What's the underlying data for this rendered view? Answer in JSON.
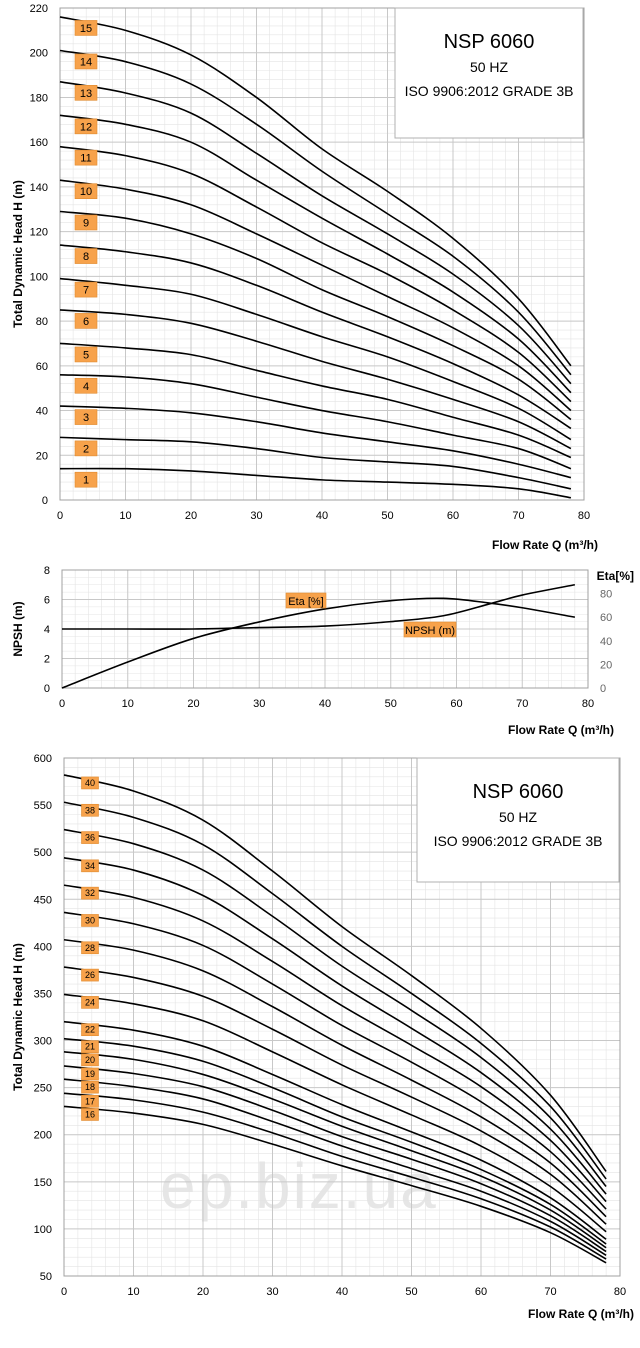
{
  "watermark": "ep.biz.ua",
  "colors": {
    "curve": "#000000",
    "grid_major": "#c8c8c8",
    "grid_minor": "#e4e4e4",
    "badge": "#f7a24b",
    "badge_border": "#e08a2e"
  },
  "chart_data": [
    {
      "type": "line",
      "info_box": {
        "title": "NSP 6060",
        "freq": "50 HZ",
        "standard": "ISO 9906:2012 GRADE 3B"
      },
      "xlabel": "Flow Rate Q (m³/h)",
      "ylabel": "Total Dynamic Head  H (m)",
      "xlim": [
        0,
        80
      ],
      "ylim": [
        0,
        220
      ],
      "x_ticks": [
        "0",
        "10",
        "20",
        "30",
        "40",
        "50",
        "60",
        "70",
        "80"
      ],
      "y_ticks": [
        "0",
        "20",
        "40",
        "60",
        "80",
        "100",
        "120",
        "140",
        "160",
        "180",
        "200",
        "220"
      ],
      "x": [
        0,
        10,
        20,
        30,
        40,
        50,
        60,
        70,
        78
      ],
      "base_curve_per_stage": [
        14.5,
        14.0,
        13.3,
        12.0,
        10.5,
        9.2,
        7.7,
        5.5,
        4.0
      ],
      "series": [
        {
          "name": "1",
          "values": [
            14,
            14,
            13,
            11,
            9,
            8,
            7,
            5,
            1
          ]
        },
        {
          "name": "2",
          "values": [
            28,
            27,
            26,
            23,
            19,
            17,
            15,
            10,
            5
          ]
        },
        {
          "name": "3",
          "values": [
            42,
            41,
            39,
            35,
            30,
            26,
            22,
            16,
            10
          ]
        },
        {
          "name": "4",
          "values": [
            56,
            55,
            52,
            46,
            40,
            35,
            29,
            23,
            14
          ]
        },
        {
          "name": "5",
          "values": [
            70,
            68,
            65,
            58,
            51,
            45,
            37,
            29,
            19
          ]
        },
        {
          "name": "6",
          "values": [
            85,
            83,
            79,
            71,
            62,
            54,
            45,
            35,
            23
          ]
        },
        {
          "name": "7",
          "values": [
            99,
            96,
            92,
            83,
            73,
            64,
            53,
            41,
            27
          ]
        },
        {
          "name": "8",
          "values": [
            114,
            111,
            106,
            96,
            84,
            73,
            61,
            47,
            32
          ]
        },
        {
          "name": "9",
          "values": [
            129,
            126,
            119,
            108,
            94,
            82,
            69,
            54,
            36
          ]
        },
        {
          "name": "10",
          "values": [
            143,
            139,
            132,
            119,
            105,
            91,
            77,
            60,
            40
          ]
        },
        {
          "name": "11",
          "values": [
            158,
            154,
            146,
            131,
            115,
            101,
            85,
            66,
            44
          ]
        },
        {
          "name": "12",
          "values": [
            172,
            168,
            160,
            143,
            126,
            110,
            93,
            72,
            48
          ]
        },
        {
          "name": "13",
          "values": [
            187,
            182,
            173,
            155,
            136,
            119,
            101,
            78,
            52
          ]
        },
        {
          "name": "14",
          "values": [
            201,
            196,
            186,
            168,
            147,
            128,
            109,
            84,
            56
          ]
        },
        {
          "name": "15",
          "values": [
            216,
            210,
            199,
            180,
            157,
            138,
            117,
            90,
            60
          ]
        }
      ]
    },
    {
      "type": "line",
      "xlabel": "Flow Rate Q (m³/h)",
      "ylabel": "NPSH (m)",
      "y2label": "Eta[%]",
      "xlim": [
        0,
        80
      ],
      "ylim": [
        0,
        8
      ],
      "y2lim": [
        0,
        100
      ],
      "x_ticks": [
        "0",
        "10",
        "20",
        "30",
        "40",
        "50",
        "60",
        "70",
        "80"
      ],
      "y_ticks": [
        "0",
        "2",
        "4",
        "6",
        "8"
      ],
      "y2_ticks": [
        "0",
        "20",
        "40",
        "60",
        "80"
      ],
      "x": [
        0,
        10,
        20,
        30,
        40,
        50,
        58,
        65,
        70,
        78
      ],
      "series": [
        {
          "name": "NPSH (m)",
          "axis": "left",
          "values": [
            4.0,
            4.0,
            4.0,
            4.1,
            4.2,
            4.5,
            4.9,
            5.7,
            6.3,
            7.0
          ]
        },
        {
          "name": "Eta [%]",
          "axis": "right",
          "values": [
            0,
            22,
            42,
            56,
            67,
            74,
            76,
            72,
            68,
            60
          ]
        }
      ]
    },
    {
      "type": "line",
      "info_box": {
        "title": "NSP 6060",
        "freq": "50 HZ",
        "standard": "ISO 9906:2012 GRADE 3B"
      },
      "xlabel": "Flow Rate Q (m³/h)",
      "ylabel": "Total Dynamic Head  H (m)",
      "xlim": [
        0,
        80
      ],
      "ylim": [
        50,
        600
      ],
      "x_ticks": [
        "0",
        "10",
        "20",
        "30",
        "40",
        "50",
        "60",
        "70",
        "80"
      ],
      "y_ticks": [
        "50",
        "100",
        "150",
        "200",
        "250",
        "300",
        "350",
        "400",
        "450",
        "500",
        "550",
        "600"
      ],
      "x": [
        0,
        10,
        20,
        30,
        40,
        50,
        60,
        70,
        78
      ],
      "series": [
        {
          "name": "16",
          "values": [
            230,
            223,
            211,
            190,
            167,
            146,
            124,
            96,
            64
          ]
        },
        {
          "name": "17",
          "values": [
            244,
            237,
            224,
            202,
            177,
            155,
            132,
            102,
            68
          ]
        },
        {
          "name": "18",
          "values": [
            259,
            251,
            238,
            214,
            188,
            164,
            140,
            108,
            72
          ]
        },
        {
          "name": "19",
          "values": [
            273,
            265,
            251,
            226,
            198,
            174,
            148,
            114,
            76
          ]
        },
        {
          "name": "20",
          "values": [
            288,
            280,
            264,
            238,
            209,
            183,
            156,
            120,
            80
          ]
        },
        {
          "name": "21",
          "values": [
            302,
            294,
            278,
            250,
            219,
            192,
            163,
            126,
            84
          ]
        },
        {
          "name": "22",
          "values": [
            320,
            311,
            294,
            264,
            232,
            203,
            173,
            133,
            89
          ]
        },
        {
          "name": "24",
          "values": [
            349,
            339,
            321,
            288,
            253,
            221,
            188,
            145,
            97
          ]
        },
        {
          "name": "26",
          "values": [
            378,
            367,
            347,
            312,
            274,
            240,
            204,
            158,
            105
          ]
        },
        {
          "name": "28",
          "values": [
            407,
            396,
            374,
            336,
            295,
            258,
            219,
            170,
            113
          ]
        },
        {
          "name": "30",
          "values": [
            436,
            424,
            401,
            360,
            316,
            277,
            235,
            182,
            121
          ]
        },
        {
          "name": "32",
          "values": [
            465,
            452,
            427,
            384,
            337,
            295,
            251,
            194,
            129
          ]
        },
        {
          "name": "34",
          "values": [
            494,
            481,
            454,
            408,
            358,
            313,
            266,
            206,
            137
          ]
        },
        {
          "name": "36",
          "values": [
            524,
            509,
            481,
            432,
            379,
            332,
            282,
            218,
            145
          ]
        },
        {
          "name": "38",
          "values": [
            553,
            537,
            508,
            456,
            400,
            350,
            297,
            230,
            153
          ]
        },
        {
          "name": "40",
          "values": [
            582,
            565,
            534,
            480,
            421,
            369,
            313,
            242,
            161
          ]
        }
      ]
    }
  ]
}
